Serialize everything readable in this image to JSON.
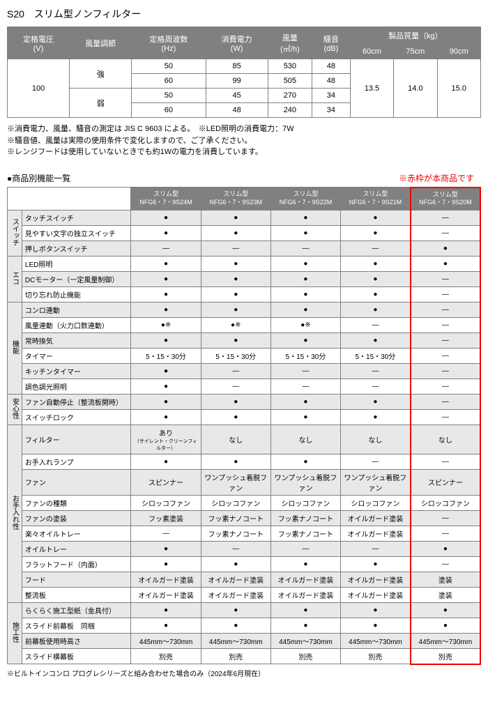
{
  "title": "S20　スリム型ノンフィルター",
  "spec_headers": {
    "voltage": "定格電圧\n(V)",
    "adjust": "風量調節",
    "freq": "定格周波数\n(Hz)",
    "power": "消費電力\n(W)",
    "airflow": "風量\n(㎥/h)",
    "noise": "騒音\n(dB)",
    "weight": "製品質量（kg）",
    "w60": "60cm",
    "w75": "75cm",
    "w90": "90cm"
  },
  "spec": {
    "voltage": "100",
    "modes": [
      "強",
      "弱"
    ],
    "rows": [
      {
        "freq": "50",
        "power": "85",
        "airflow": "530",
        "noise": "48"
      },
      {
        "freq": "60",
        "power": "99",
        "airflow": "505",
        "noise": "48"
      },
      {
        "freq": "50",
        "power": "45",
        "airflow": "270",
        "noise": "34"
      },
      {
        "freq": "60",
        "power": "48",
        "airflow": "240",
        "noise": "34"
      }
    ],
    "weights": {
      "w60": "13.5",
      "w75": "14.0",
      "w90": "15.0"
    }
  },
  "notes": [
    "※消費電力、風量、騒音の測定は JIS C 9603 による。　※LED照明の消費電力：7W",
    "※騒音値、風量は実際の使用条件で変化しますので、ご了承ください。",
    "※レンジフードは使用していないときでも約1Wの電力を消費しています。"
  ],
  "features_title": "●商品別機能一覧",
  "red_note": "※赤枠が本商品です",
  "models": [
    "スリム型\nNFG6・7・9S24M",
    "スリム型\nNFG6・7・9S23M",
    "スリム型\nNFG6・7・9S22M",
    "スリム型\nNFG6・7・9S21M",
    "スリム型\nNFG6・7・9S20M"
  ],
  "categories": [
    {
      "name": "スイッチ",
      "rows": [
        {
          "label": "タッチスイッチ",
          "v": [
            "●",
            "●",
            "●",
            "●",
            "―"
          ],
          "alt": 1
        },
        {
          "label": "見やすい文字の独立スイッチ",
          "v": [
            "●",
            "●",
            "●",
            "●",
            "―"
          ]
        },
        {
          "label": "押しボタンスイッチ",
          "v": [
            "―",
            "―",
            "―",
            "―",
            "●"
          ],
          "alt": 1
        }
      ]
    },
    {
      "name": "エコ",
      "rows": [
        {
          "label": "LED照明",
          "v": [
            "●",
            "●",
            "●",
            "●",
            "●"
          ]
        },
        {
          "label": "DCモーター（一定風量制御）",
          "v": [
            "●",
            "●",
            "●",
            "●",
            "―"
          ],
          "alt": 1
        },
        {
          "label": "切り忘れ防止機能",
          "v": [
            "●",
            "●",
            "●",
            "●",
            "―"
          ]
        }
      ]
    },
    {
      "name": "機能",
      "rows": [
        {
          "label": "コンロ連動",
          "v": [
            "●",
            "●",
            "●",
            "●",
            "―"
          ],
          "alt": 1
        },
        {
          "label": "風量連動（火力口数連動）",
          "v": [
            "●※",
            "●※",
            "●※",
            "―",
            "―"
          ]
        },
        {
          "label": "常時換気",
          "v": [
            "●",
            "●",
            "●",
            "●",
            "―"
          ],
          "alt": 1
        },
        {
          "label": "タイマー",
          "v": [
            "5・15・30分",
            "5・15・30分",
            "5・15・30分",
            "5・15・30分",
            "―"
          ]
        },
        {
          "label": "キッチンタイマー",
          "v": [
            "●",
            "―",
            "―",
            "―",
            "―"
          ],
          "alt": 1
        },
        {
          "label": "調色調光照明",
          "v": [
            "●",
            "―",
            "―",
            "―",
            "―"
          ]
        }
      ]
    },
    {
      "name": "安心性",
      "rows": [
        {
          "label": "ファン自動停止（整流板開時）",
          "v": [
            "●",
            "●",
            "●",
            "●",
            "―"
          ],
          "alt": 1
        },
        {
          "label": "スイッチロック",
          "v": [
            "●",
            "●",
            "●",
            "●",
            "―"
          ]
        }
      ]
    },
    {
      "name": "お手入れ性",
      "rows": [
        {
          "label": "フィルター",
          "v": [
            "あり\n（サイレント・クリーンフィルター）",
            "なし",
            "なし",
            "なし",
            "なし"
          ],
          "alt": 1
        },
        {
          "label": "お手入れランプ",
          "v": [
            "●",
            "●",
            "●",
            "―",
            "―"
          ]
        },
        {
          "label": "ファン",
          "v": [
            "スピンナー",
            "ワンプッシュ着脱ファン",
            "ワンプッシュ着脱ファン",
            "ワンプッシュ着脱ファン",
            "スピンナー"
          ],
          "alt": 1
        },
        {
          "label": "ファンの種類",
          "v": [
            "シロッコファン",
            "シロッコファン",
            "シロッコファン",
            "シロッコファン",
            "シロッコファン"
          ]
        },
        {
          "label": "ファンの塗装",
          "v": [
            "フッ素塗装",
            "フッ素ナノコート",
            "フッ素ナノコート",
            "オイルガード塗装",
            "―"
          ],
          "alt": 1
        },
        {
          "label": "楽々オイルトレー",
          "v": [
            "―",
            "フッ素ナノコート",
            "フッ素ナノコート",
            "オイルガード塗装",
            "―"
          ]
        },
        {
          "label": "オイルトレー",
          "v": [
            "●",
            "―",
            "―",
            "―",
            "●"
          ],
          "alt": 1
        },
        {
          "label": "フラットフード（内面）",
          "v": [
            "●",
            "●",
            "●",
            "●",
            "―"
          ]
        },
        {
          "label": "フード",
          "v": [
            "オイルガード塗装",
            "オイルガード塗装",
            "オイルガード塗装",
            "オイルガード塗装",
            "塗装"
          ],
          "alt": 1
        },
        {
          "label": "整流板",
          "v": [
            "オイルガード塗装",
            "オイルガード塗装",
            "オイルガード塗装",
            "オイルガード塗装",
            "塗装"
          ]
        }
      ]
    },
    {
      "name": "施工性",
      "rows": [
        {
          "label": "らくらく施工型紙（金具付）",
          "v": [
            "●",
            "●",
            "●",
            "●",
            "●"
          ],
          "alt": 1
        },
        {
          "label": "スライド前幕板　同梱",
          "v": [
            "●",
            "●",
            "●",
            "●",
            "●"
          ]
        },
        {
          "label": "前幕板使用時高さ",
          "v": [
            "445mm〜730mm",
            "445mm〜730mm",
            "445mm〜730mm",
            "445mm〜730mm",
            "445mm〜730mm"
          ],
          "alt": 1
        },
        {
          "label": "スライド横幕板",
          "v": [
            "別売",
            "別売",
            "別売",
            "別売",
            "別売"
          ]
        }
      ]
    }
  ],
  "footnote": "※ビルトインコンロ プログレシリーズと組み合わせた場合のみ（2024年6月現在）"
}
